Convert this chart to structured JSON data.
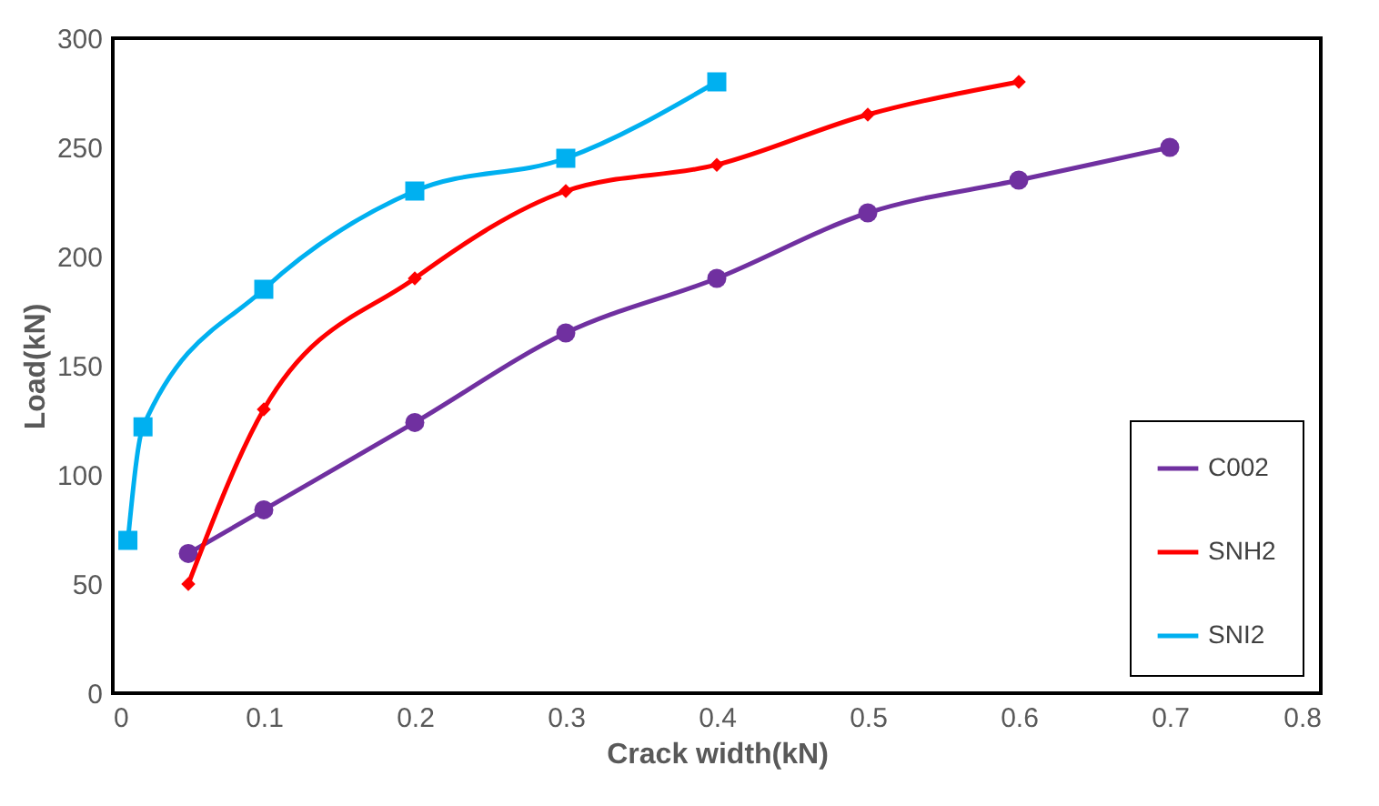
{
  "chart_data": {
    "type": "line",
    "xlabel": "Crack width(kN)",
    "ylabel": "Load(kN)",
    "xlim": [
      0,
      0.8
    ],
    "xticks": [
      0,
      0.1,
      0.2,
      0.3,
      0.4,
      0.5,
      0.6,
      0.7,
      0.8
    ],
    "ylim": [
      0,
      300
    ],
    "yticks": [
      0,
      50,
      100,
      150,
      200,
      250,
      300
    ],
    "legend": "bottom right",
    "grid": false,
    "series": [
      {
        "name": "C002",
        "color": "#7030a0",
        "marker": "circle",
        "x": [
          0.05,
          0.1,
          0.2,
          0.3,
          0.4,
          0.5,
          0.6,
          0.7
        ],
        "values": [
          64,
          84,
          124,
          165,
          190,
          220,
          235,
          250
        ]
      },
      {
        "name": "SNH2",
        "color": "#ff0000",
        "marker": "diamond",
        "x": [
          0.05,
          0.1,
          0.2,
          0.3,
          0.4,
          0.5,
          0.6
        ],
        "values": [
          50,
          130,
          190,
          230,
          242,
          265,
          280
        ]
      },
      {
        "name": "SNI2",
        "color": "#00b0f0",
        "marker": "square",
        "x": [
          0.01,
          0.02,
          0.1,
          0.2,
          0.3,
          0.4
        ],
        "values": [
          70,
          122,
          185,
          230,
          245,
          280
        ]
      }
    ]
  }
}
